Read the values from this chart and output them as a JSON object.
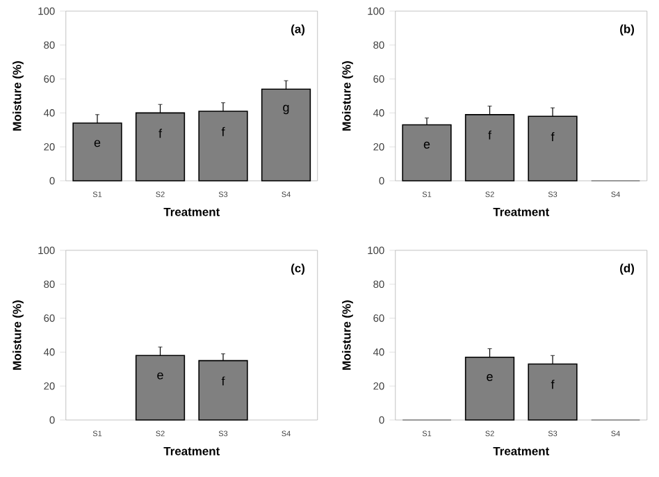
{
  "chart_data": [
    {
      "type": "bar",
      "xlabel": "Treatment",
      "ylabel": "Moisture (%)",
      "annotations": [
        "(a)"
      ],
      "categories": [
        "S1",
        "S2",
        "S3",
        "S4"
      ],
      "color": "#808080",
      "values": [
        34,
        40,
        41,
        54
      ],
      "errors": [
        5,
        5,
        5,
        5
      ],
      "value_labels": [
        "e",
        "f",
        "f",
        "g"
      ],
      "ylim": [
        0,
        100
      ],
      "yticks": [
        0,
        20,
        40,
        60,
        80,
        100
      ]
    },
    {
      "type": "bar",
      "xlabel": "Treatment",
      "ylabel": "Moisture (%)",
      "annotations": [
        "(b)"
      ],
      "categories": [
        "S1",
        "S2",
        "S3",
        "S4"
      ],
      "color": "#808080",
      "values": [
        33,
        39,
        38,
        0
      ],
      "errors": [
        4,
        5,
        5,
        null
      ],
      "value_labels": [
        "e",
        "f",
        "f",
        null
      ],
      "ylim": [
        0,
        100
      ],
      "yticks": [
        0,
        20,
        40,
        60,
        80,
        100
      ]
    },
    {
      "type": "bar",
      "xlabel": "Treatment",
      "ylabel": "Moisture (%)",
      "annotations": [
        "(c)"
      ],
      "categories": [
        "S1",
        "S2",
        "S3",
        "S4"
      ],
      "color": "#808080",
      "values": [
        null,
        38,
        35,
        null
      ],
      "errors": [
        null,
        5,
        4,
        null
      ],
      "value_labels": [
        null,
        "e",
        "f",
        null
      ],
      "ylim": [
        0,
        100
      ],
      "yticks": [
        0,
        20,
        40,
        60,
        80,
        100
      ]
    },
    {
      "type": "bar",
      "xlabel": "Treatment",
      "ylabel": "Moisture (%)",
      "annotations": [
        "(d)"
      ],
      "categories": [
        "S1",
        "S2",
        "S3",
        "S4"
      ],
      "color": "#808080",
      "values": [
        0,
        37,
        33,
        0
      ],
      "errors": [
        null,
        5,
        5,
        null
      ],
      "value_labels": [
        null,
        "e",
        "f",
        null
      ],
      "ylim": [
        0,
        100
      ],
      "yticks": [
        0,
        20,
        40,
        60,
        80,
        100
      ]
    }
  ]
}
